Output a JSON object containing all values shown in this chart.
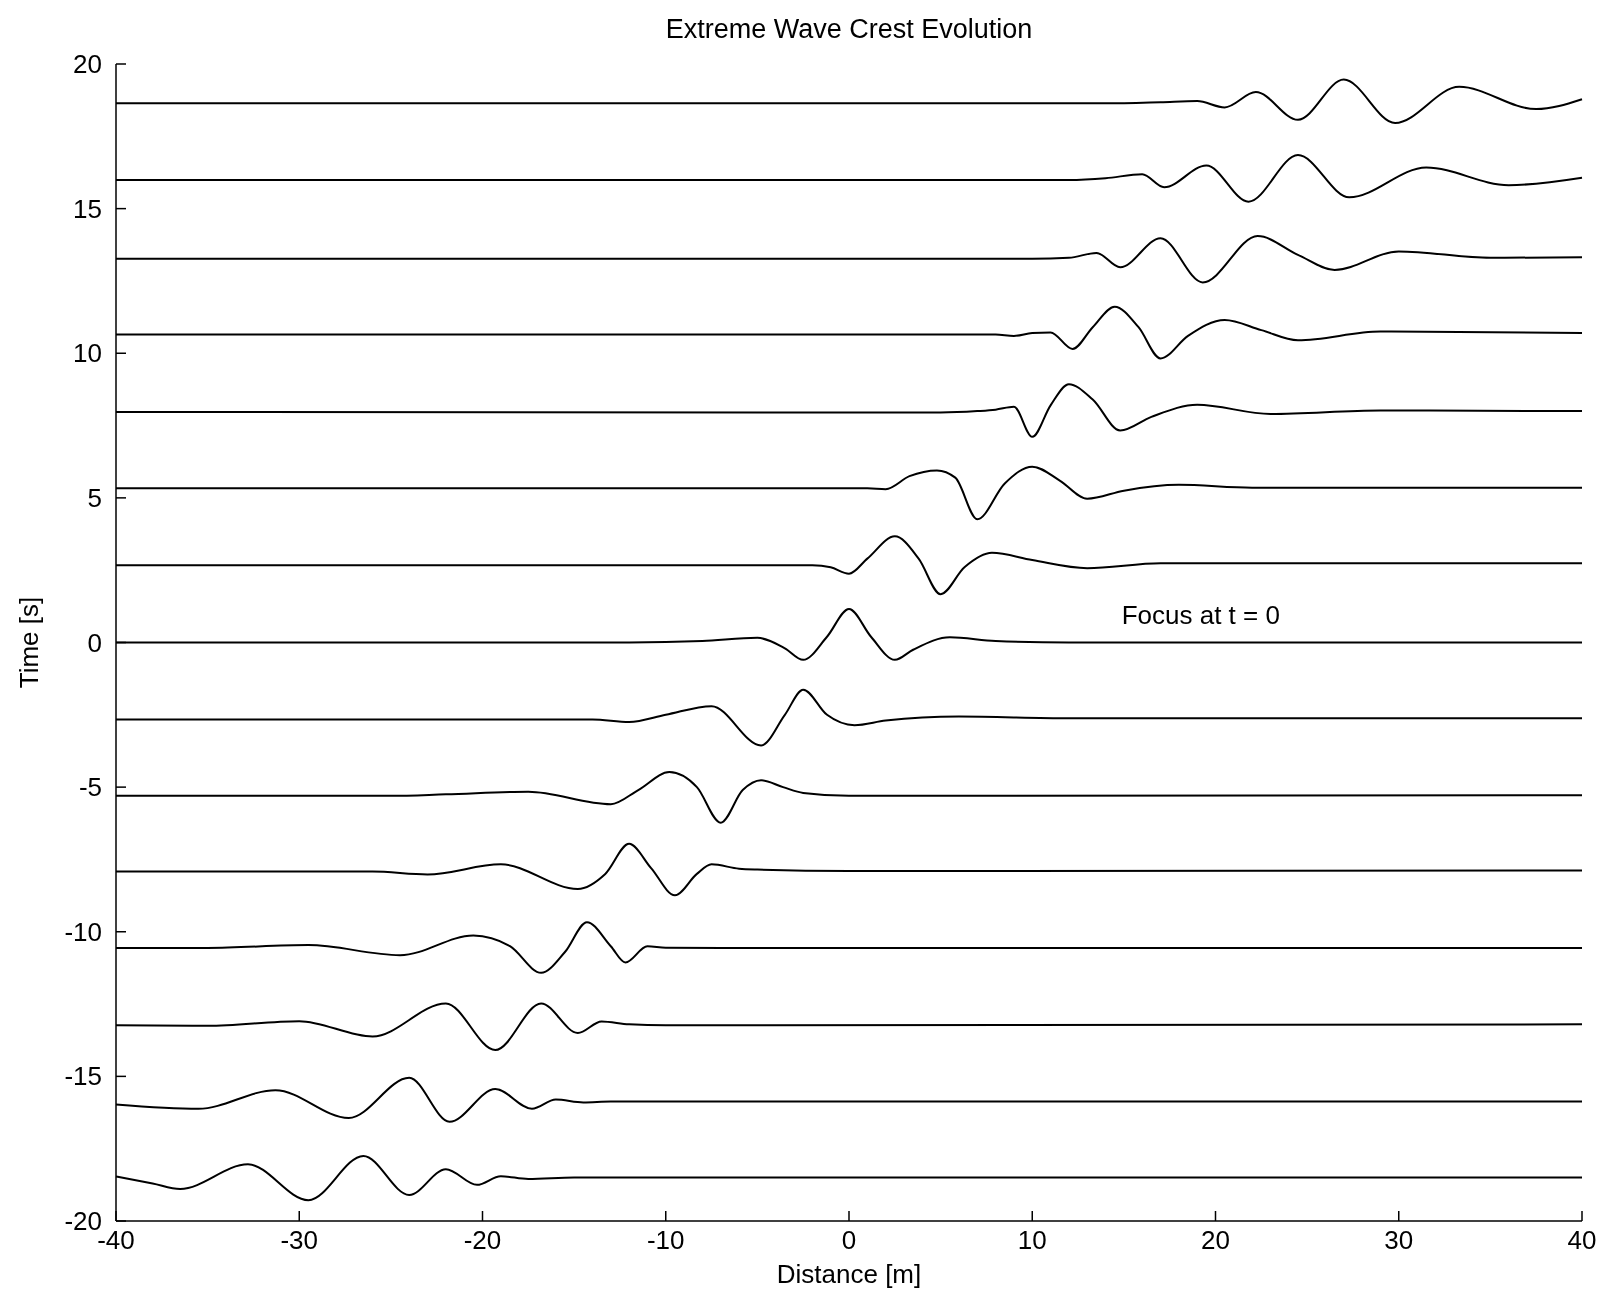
{
  "chart_data": {
    "type": "line",
    "title": "Extreme Wave Crest Evolution",
    "xlabel": "Distance [m]",
    "ylabel": "Time [s]",
    "xlim": [
      -40,
      40
    ],
    "xticks": [
      -40,
      -30,
      -20,
      -10,
      0,
      10,
      20,
      30,
      40
    ],
    "ylim": [
      -20,
      20
    ],
    "yticks": [
      -20,
      -15,
      -10,
      -5,
      0,
      5,
      10,
      15,
      20
    ],
    "grid": false,
    "marker": "none",
    "line_style": "solid",
    "annotations": [
      "Focus at t = 0"
    ],
    "series": [
      {
        "color": "#000000",
        "x": [
          -40,
          14,
          17,
          19,
          20.5,
          22.2,
          24.5,
          27,
          29.8,
          33.3,
          37.5,
          40
        ],
        "values": [
          18.64,
          18.64,
          18.68,
          18.72,
          18.5,
          19.03,
          18.07,
          19.46,
          17.96,
          19.21,
          18.44,
          18.78
        ]
      },
      {
        "color": "#000000",
        "x": [
          -40,
          12,
          14,
          16,
          17.2,
          19.5,
          21.8,
          24.5,
          27.3,
          31.5,
          36,
          40
        ],
        "values": [
          15.99,
          15.99,
          16.05,
          16.19,
          15.74,
          16.49,
          15.24,
          16.85,
          15.39,
          16.42,
          15.81,
          16.07
        ]
      },
      {
        "color": "#000000",
        "x": [
          -40,
          10,
          12,
          13.5,
          14.8,
          17,
          19.3,
          22.3,
          24.5,
          26.5,
          30,
          35,
          40
        ],
        "values": [
          13.27,
          13.27,
          13.3,
          13.47,
          12.97,
          13.98,
          12.45,
          14.05,
          13.4,
          12.88,
          13.52,
          13.3,
          13.32
        ]
      },
      {
        "color": "#000000",
        "x": [
          -40,
          8,
          9,
          10,
          11,
          12.2,
          13.3,
          14.5,
          15.8,
          17,
          18.5,
          20.5,
          22.5,
          24.5,
          29,
          40
        ],
        "values": [
          10.65,
          10.65,
          10.6,
          10.7,
          10.72,
          10.15,
          10.9,
          11.61,
          10.9,
          9.82,
          10.6,
          11.15,
          10.8,
          10.45,
          10.75,
          10.7
        ]
      },
      {
        "color": "#000000",
        "x": [
          -40,
          5,
          7,
          8,
          9,
          10,
          11,
          12,
          13.3,
          14.8,
          16.5,
          19,
          23,
          29,
          40
        ],
        "values": [
          7.97,
          7.95,
          8.0,
          8.05,
          8.15,
          7.11,
          8.2,
          8.93,
          8.4,
          7.33,
          7.8,
          8.22,
          7.9,
          8.02,
          8.0
        ]
      },
      {
        "color": "#000000",
        "x": [
          -40,
          1,
          2,
          3.3,
          4.8,
          5.8,
          7,
          8.5,
          10,
          11.5,
          13,
          15,
          18,
          22,
          40
        ],
        "values": [
          5.33,
          5.33,
          5.3,
          5.75,
          5.95,
          5.7,
          4.26,
          5.5,
          6.08,
          5.6,
          4.97,
          5.25,
          5.45,
          5.35,
          5.35
        ]
      },
      {
        "color": "#000000",
        "x": [
          -40,
          -2,
          -1,
          0,
          1,
          2.5,
          3.8,
          5,
          6.3,
          7.8,
          10,
          13,
          17,
          40
        ],
        "values": [
          2.67,
          2.67,
          2.6,
          2.38,
          2.9,
          3.67,
          2.9,
          1.67,
          2.6,
          3.1,
          2.85,
          2.57,
          2.74,
          2.74
        ]
      },
      {
        "color": "#000000",
        "x": [
          -40,
          -12,
          -8,
          -5,
          -3.5,
          -2.5,
          -1.2,
          0,
          1.2,
          2.5,
          3.5,
          5.5,
          8,
          12,
          40
        ],
        "values": [
          0,
          0,
          0.05,
          0.16,
          -0.2,
          -0.6,
          0.2,
          1.16,
          0.2,
          -0.6,
          -0.25,
          0.18,
          0.05,
          0,
          0
        ]
      },
      {
        "color": "#000000",
        "x": [
          -40,
          -14,
          -12,
          -10,
          -7.5,
          -4.8,
          -3.5,
          -2.5,
          -1.2,
          0.3,
          2,
          6,
          12,
          40
        ],
        "values": [
          -2.66,
          -2.66,
          -2.75,
          -2.5,
          -2.2,
          -3.56,
          -2.5,
          -1.63,
          -2.5,
          -2.86,
          -2.7,
          -2.56,
          -2.62,
          -2.62
        ]
      },
      {
        "color": "#000000",
        "x": [
          -40,
          -25,
          -22,
          -17.5,
          -13,
          -11.5,
          -9.8,
          -8.3,
          -7,
          -5.8,
          -4.8,
          -3.6,
          -2.5,
          0,
          40
        ],
        "values": [
          -5.3,
          -5.3,
          -5.25,
          -5.16,
          -5.59,
          -5.1,
          -4.48,
          -5.0,
          -6.23,
          -5.1,
          -4.76,
          -5.0,
          -5.2,
          -5.3,
          -5.28
        ]
      },
      {
        "color": "#000000",
        "x": [
          -40,
          -26,
          -23,
          -19,
          -14.8,
          -13.3,
          -12,
          -10.8,
          -9.5,
          -8.3,
          -7.5,
          -6,
          -5,
          0,
          40
        ],
        "values": [
          -7.92,
          -7.92,
          -8.02,
          -7.67,
          -8.52,
          -8.0,
          -6.96,
          -7.8,
          -8.74,
          -8.0,
          -7.67,
          -7.82,
          -7.85,
          -7.9,
          -7.88
        ]
      },
      {
        "color": "#000000",
        "x": [
          -40,
          -35,
          -29.5,
          -24.5,
          -20.5,
          -18.5,
          -16.8,
          -15.5,
          -14.3,
          -13,
          -12.2,
          -11,
          -10,
          -5,
          40
        ],
        "values": [
          -10.56,
          -10.56,
          -10.46,
          -10.81,
          -10.13,
          -10.5,
          -11.42,
          -10.7,
          -9.67,
          -10.5,
          -11.06,
          -10.5,
          -10.55,
          -10.56,
          -10.56
        ]
      },
      {
        "color": "#000000",
        "x": [
          -40,
          -35,
          -30,
          -26,
          -22,
          -19.3,
          -16.8,
          -14.8,
          -13.5,
          -12,
          -10,
          40
        ],
        "values": [
          -13.23,
          -13.25,
          -13.09,
          -13.62,
          -12.48,
          -14.09,
          -12.48,
          -13.5,
          -13.1,
          -13.2,
          -13.23,
          -13.2
        ]
      },
      {
        "color": "#000000",
        "x": [
          -40,
          -35.5,
          -31.3,
          -27.3,
          -24,
          -21.8,
          -19.3,
          -17.3,
          -16,
          -14.5,
          -13,
          40
        ],
        "values": [
          -15.97,
          -16.12,
          -15.48,
          -16.44,
          -15.05,
          -16.57,
          -15.44,
          -16.12,
          -15.8,
          -15.9,
          -15.87,
          -15.87
        ]
      },
      {
        "color": "#000000",
        "x": [
          -40,
          -38,
          -36.5,
          -32.8,
          -29.5,
          -26.5,
          -24,
          -22,
          -20.3,
          -19,
          -17.5,
          -15,
          40
        ],
        "values": [
          -18.46,
          -18.7,
          -18.89,
          -18.04,
          -19.28,
          -17.75,
          -19.1,
          -18.21,
          -18.75,
          -18.45,
          -18.55,
          -18.5,
          -18.5
        ]
      }
    ]
  }
}
